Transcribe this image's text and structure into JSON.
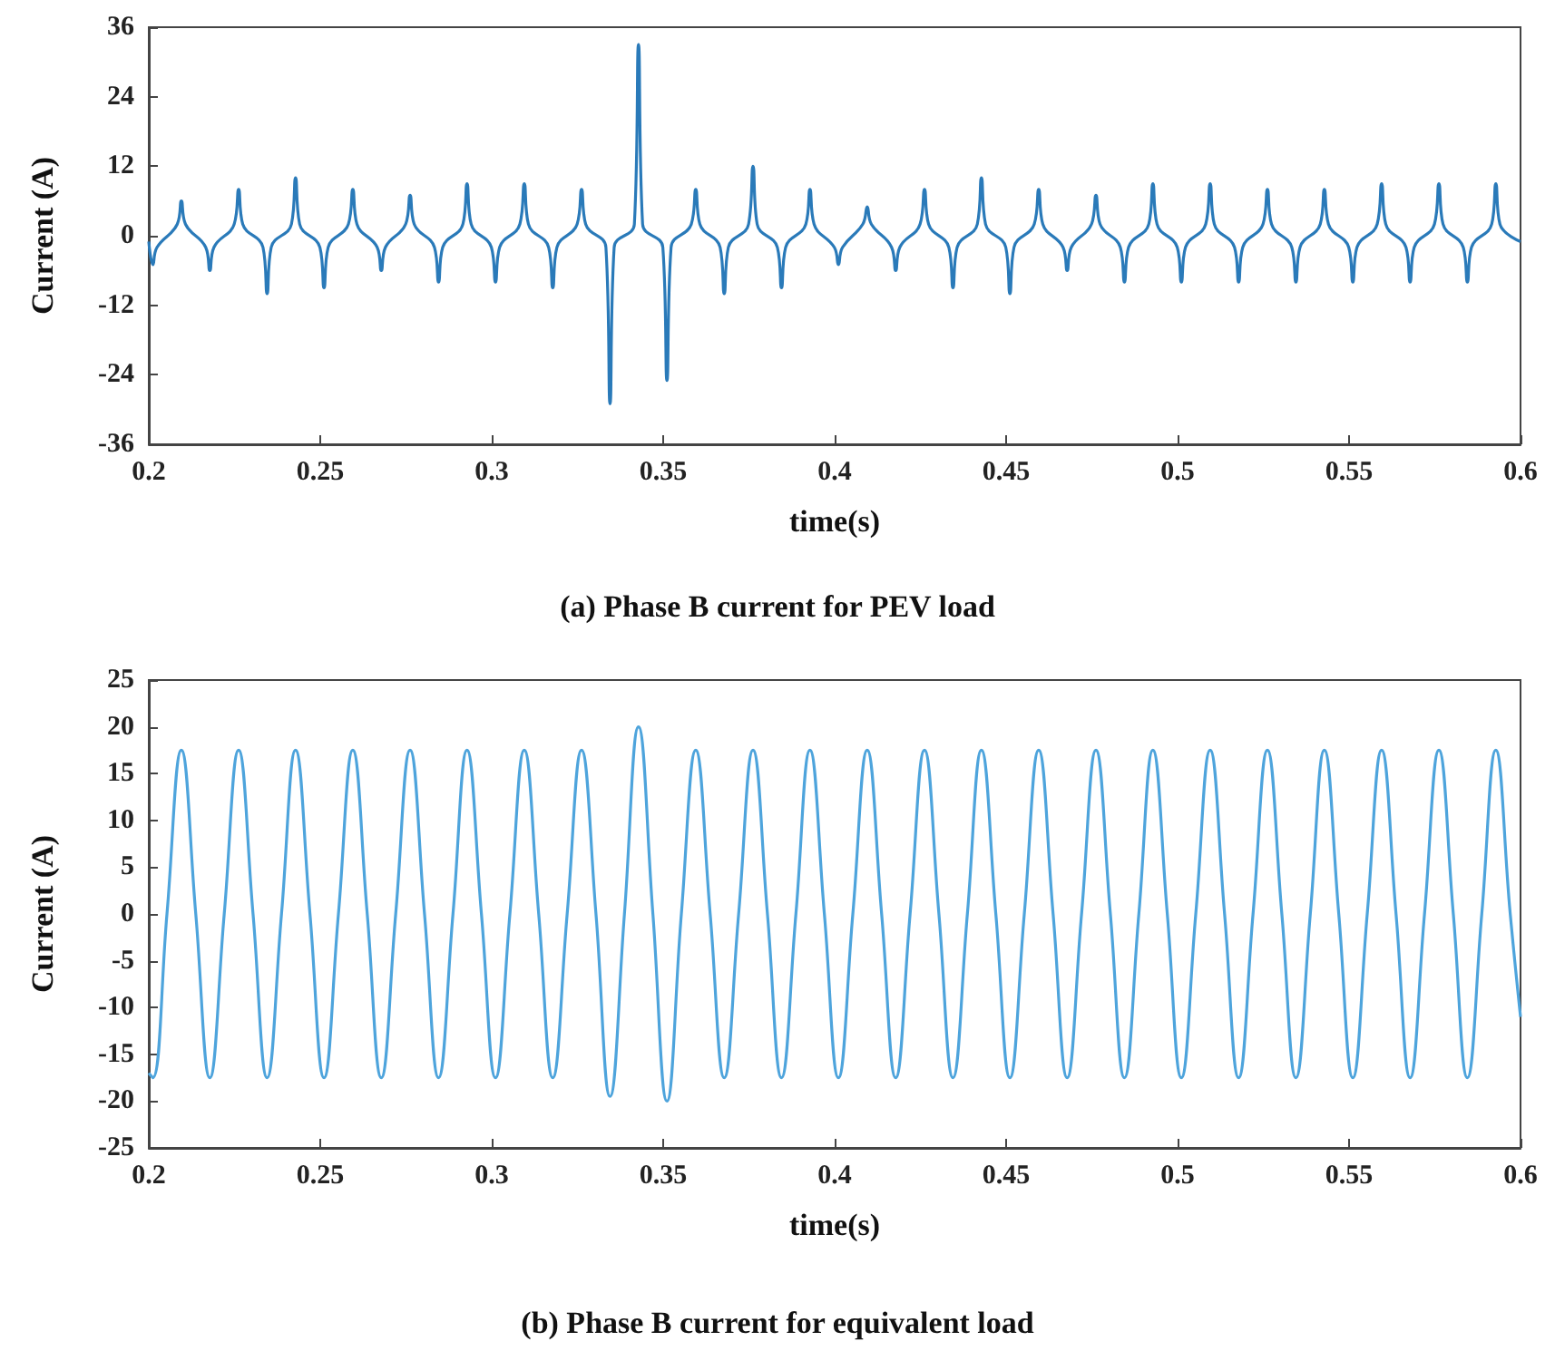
{
  "chart_data": [
    {
      "type": "line",
      "title": "(a) Phase B current for PEV load",
      "xlabel": "time(s)",
      "ylabel": "Current (A)",
      "xlim": [
        0.2,
        0.6
      ],
      "xticks": [
        0.2,
        0.25,
        0.3,
        0.35,
        0.4,
        0.45,
        0.5,
        0.55,
        0.6
      ],
      "ylim": [
        -36,
        36
      ],
      "yticks": [
        -36,
        -24,
        -12,
        0,
        12,
        24,
        36
      ],
      "marker": "none",
      "line_style": "solid",
      "series": [
        {
          "color": "#2a7ab9",
          "x": [
            0.2,
            0.2012,
            0.2024,
            0.2083,
            0.2095,
            0.2107,
            0.2166,
            0.2178,
            0.219,
            0.2249,
            0.2262,
            0.2274,
            0.2333,
            0.2345,
            0.2357,
            0.2416,
            0.2428,
            0.244,
            0.2499,
            0.2511,
            0.2523,
            0.2582,
            0.2595,
            0.2607,
            0.2666,
            0.2678,
            0.269,
            0.2749,
            0.2762,
            0.2774,
            0.2833,
            0.2845,
            0.2857,
            0.2916,
            0.2928,
            0.294,
            0.2999,
            0.3011,
            0.3023,
            0.3082,
            0.3095,
            0.3107,
            0.3166,
            0.3178,
            0.319,
            0.3249,
            0.3262,
            0.3274,
            0.3333,
            0.3345,
            0.3357,
            0.3416,
            0.3428,
            0.344,
            0.3499,
            0.3511,
            0.3523,
            0.3582,
            0.3595,
            0.3607,
            0.3666,
            0.3678,
            0.369,
            0.3749,
            0.3762,
            0.3774,
            0.3833,
            0.3845,
            0.3857,
            0.3916,
            0.3928,
            0.394,
            0.3999,
            0.4011,
            0.4023,
            0.4082,
            0.4095,
            0.4107,
            0.4166,
            0.4178,
            0.419,
            0.4249,
            0.4262,
            0.4274,
            0.4333,
            0.4345,
            0.4357,
            0.4416,
            0.4428,
            0.444,
            0.4499,
            0.4511,
            0.4523,
            0.4582,
            0.4595,
            0.4607,
            0.4666,
            0.4678,
            0.469,
            0.4749,
            0.4762,
            0.4774,
            0.4833,
            0.4845,
            0.4857,
            0.4916,
            0.4928,
            0.494,
            0.4999,
            0.5011,
            0.5023,
            0.5082,
            0.5095,
            0.5107,
            0.5166,
            0.5178,
            0.519,
            0.5249,
            0.5262,
            0.5274,
            0.5333,
            0.5345,
            0.5357,
            0.5416,
            0.5428,
            0.544,
            0.5499,
            0.5511,
            0.5523,
            0.5582,
            0.5595,
            0.5607,
            0.5666,
            0.5678,
            0.569,
            0.5749,
            0.5762,
            0.5774,
            0.5833,
            0.5845,
            0.5857,
            0.5916,
            0.5928,
            0.594,
            0.6
          ],
          "values": [
            -1,
            -5,
            -2,
            2,
            6,
            2,
            -2,
            -6,
            -2,
            2,
            8,
            2,
            -2,
            -10,
            -2,
            2,
            10,
            2,
            -2,
            -9,
            -2,
            2,
            8,
            2,
            -2,
            -6,
            -2,
            2,
            7,
            2,
            -2,
            -8,
            -2,
            2,
            9,
            2,
            -2,
            -8,
            -2,
            2,
            9,
            2,
            -2,
            -9,
            -2,
            2,
            8,
            2,
            -2,
            -29,
            -2,
            2,
            33,
            2,
            -2,
            -25,
            -2,
            2,
            8,
            2,
            -2,
            -10,
            -2,
            2,
            12,
            2,
            -2,
            -9,
            -2,
            2,
            8,
            2,
            -2,
            -5,
            -2,
            2,
            5,
            2,
            -2,
            -6,
            -2,
            2,
            8,
            2,
            -2,
            -9,
            -2,
            2,
            10,
            2,
            -2,
            -10,
            -2,
            2,
            8,
            2,
            -2,
            -6,
            -2,
            2,
            7,
            2,
            -2,
            -8,
            -2,
            2,
            9,
            2,
            -2,
            -8,
            -2,
            2,
            9,
            2,
            -2,
            -8,
            -2,
            2,
            8,
            2,
            -2,
            -8,
            -2,
            2,
            8,
            2,
            -2,
            -8,
            -2,
            2,
            9,
            2,
            -2,
            -8,
            -2,
            2,
            9,
            2,
            -2,
            -8,
            -2,
            2,
            9,
            2,
            -1
          ]
        }
      ]
    },
    {
      "type": "line",
      "title": "(b) Phase B current for equivalent load",
      "xlabel": "time(s)",
      "ylabel": "Current (A)",
      "xlim": [
        0.2,
        0.6
      ],
      "xticks": [
        0.2,
        0.25,
        0.3,
        0.35,
        0.4,
        0.45,
        0.5,
        0.55,
        0.6
      ],
      "ylim": [
        -25,
        25
      ],
      "yticks": [
        -25,
        -20,
        -15,
        -10,
        -5,
        0,
        5,
        10,
        15,
        20,
        25
      ],
      "marker": "none",
      "line_style": "solid",
      "series": [
        {
          "color": "#4ea4dc",
          "x": [
            0.2,
            0.2012,
            0.2053,
            0.2095,
            0.2137,
            0.2178,
            0.222,
            0.2262,
            0.2304,
            0.2345,
            0.2387,
            0.2428,
            0.247,
            0.2511,
            0.2553,
            0.2595,
            0.2637,
            0.2678,
            0.272,
            0.2762,
            0.2804,
            0.2845,
            0.2887,
            0.2928,
            0.297,
            0.3011,
            0.3053,
            0.3095,
            0.3137,
            0.3178,
            0.322,
            0.3262,
            0.3304,
            0.3345,
            0.3387,
            0.3428,
            0.347,
            0.3511,
            0.3553,
            0.3595,
            0.3637,
            0.3678,
            0.372,
            0.3762,
            0.3804,
            0.3845,
            0.3887,
            0.3928,
            0.397,
            0.4011,
            0.4053,
            0.4095,
            0.4137,
            0.4178,
            0.422,
            0.4262,
            0.4304,
            0.4345,
            0.4387,
            0.4428,
            0.447,
            0.4511,
            0.4553,
            0.4595,
            0.4637,
            0.4678,
            0.472,
            0.4762,
            0.4804,
            0.4845,
            0.4887,
            0.4928,
            0.497,
            0.5011,
            0.5053,
            0.5095,
            0.5137,
            0.5178,
            0.522,
            0.5262,
            0.5304,
            0.5345,
            0.5387,
            0.5428,
            0.547,
            0.5511,
            0.5553,
            0.5595,
            0.5637,
            0.5678,
            0.572,
            0.5762,
            0.5804,
            0.5845,
            0.5887,
            0.5928,
            0.597,
            0.6
          ],
          "values": [
            -17,
            -17.5,
            0,
            17.5,
            0,
            -17.5,
            0,
            17.5,
            0,
            -17.5,
            0,
            17.5,
            0,
            -17.5,
            0,
            17.5,
            0,
            -17.5,
            0,
            17.5,
            0,
            -17.5,
            0,
            17.5,
            0,
            -17.5,
            0,
            17.5,
            0,
            -17.5,
            0,
            17.5,
            0,
            -19.5,
            0,
            20,
            0,
            -20,
            0,
            17.5,
            0,
            -17.5,
            0,
            17.5,
            0,
            -17.5,
            0,
            17.5,
            0,
            -17.5,
            0,
            17.5,
            0,
            -17.5,
            0,
            17.5,
            0,
            -17.5,
            0,
            17.5,
            0,
            -17.5,
            0,
            17.5,
            0,
            -17.5,
            0,
            17.5,
            0,
            -17.5,
            0,
            17.5,
            0,
            -17.5,
            0,
            17.5,
            0,
            -17.5,
            0,
            17.5,
            0,
            -17.5,
            0,
            17.5,
            0,
            -17.5,
            0,
            17.5,
            0,
            -17.5,
            0,
            17.5,
            0,
            -17.5,
            0,
            17.5,
            0,
            -11
          ]
        }
      ]
    }
  ]
}
